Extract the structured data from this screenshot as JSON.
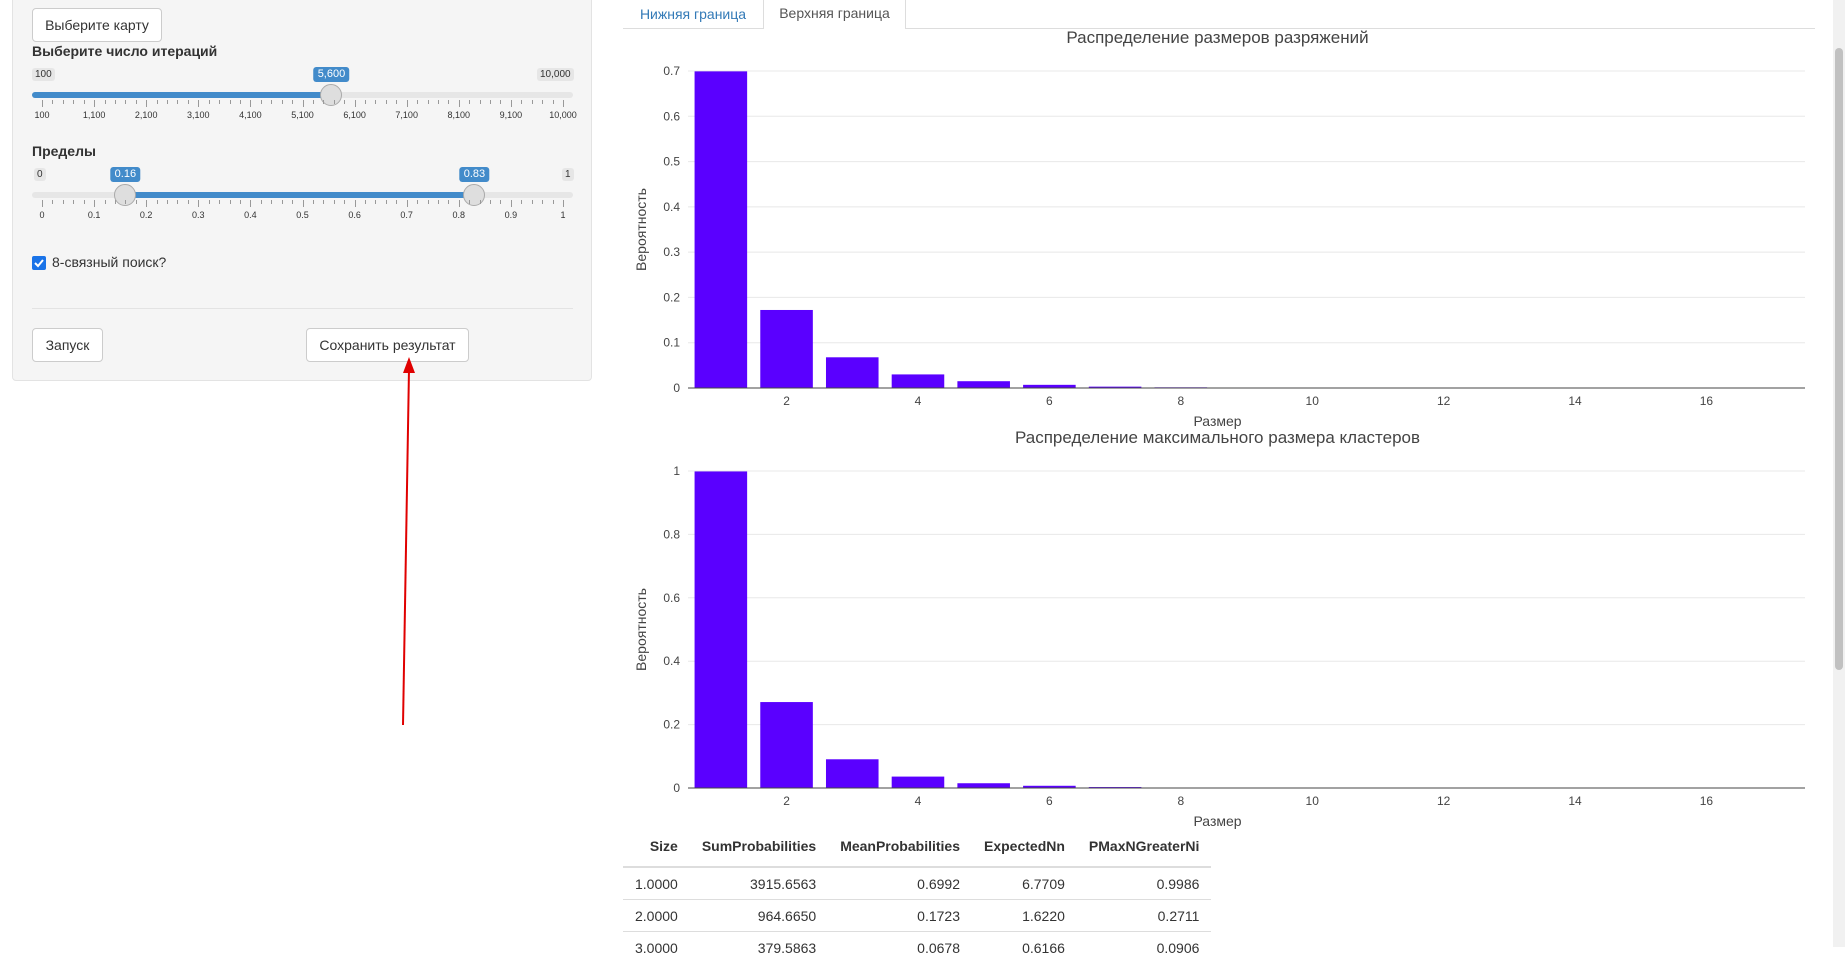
{
  "sidebar": {
    "choose_map_button": "Выберите карту",
    "iterations": {
      "label": "Выберите число итераций",
      "min": "100",
      "max": "10,000",
      "value": "5,600",
      "value_fraction": 0.5556,
      "ticks": [
        "100",
        "1,100",
        "2,100",
        "3,100",
        "4,100",
        "5,100",
        "6,100",
        "7,100",
        "8,100",
        "9,100",
        "10,000"
      ]
    },
    "bounds": {
      "label": "Пределы",
      "min": "0",
      "max": "1",
      "low": "0.16",
      "high": "0.83",
      "ticks": [
        "0",
        "0.1",
        "0.2",
        "0.3",
        "0.4",
        "0.5",
        "0.6",
        "0.7",
        "0.8",
        "0.9",
        "1"
      ]
    },
    "eight_connected": {
      "label": "8-связный поиск?",
      "checked": true
    },
    "run_button": "Запуск",
    "save_button": "Сохранить результат"
  },
  "tabs": [
    {
      "label": "Нижняя граница",
      "active": false
    },
    {
      "label": "Верхняя граница",
      "active": true
    }
  ],
  "colors": {
    "bar": "#5a00ff",
    "accent": "#428bca",
    "link": "#337ab7",
    "arrow": "#e00000"
  },
  "chart_data": [
    {
      "type": "bar",
      "title": "Распределение размеров разряжений",
      "xlabel": "Размер",
      "ylabel": "Вероятность",
      "x": [
        1,
        2,
        3,
        4,
        5,
        6,
        7,
        8,
        9,
        10
      ],
      "values": [
        0.6992,
        0.1723,
        0.0678,
        0.03,
        0.015,
        0.007,
        0.003,
        0.0015,
        0.0007,
        0.0003
      ],
      "xlim": [
        0.5,
        17.5
      ],
      "ylim": [
        0,
        0.7
      ],
      "xticks": [
        "2",
        "4",
        "6",
        "8",
        "10",
        "12",
        "14",
        "16"
      ],
      "yticks": [
        "0",
        "0.1",
        "0.2",
        "0.3",
        "0.4",
        "0.5",
        "0.6",
        "0.7"
      ],
      "grid": true
    },
    {
      "type": "bar",
      "title": "Распределение максимального размера кластеров",
      "xlabel": "Размер",
      "ylabel": "Вероятность",
      "x": [
        1,
        2,
        3,
        4,
        5,
        6,
        7,
        8,
        9,
        10
      ],
      "values": [
        0.9986,
        0.2711,
        0.0906,
        0.036,
        0.015,
        0.007,
        0.003,
        0.0015,
        0.0007,
        0.0003
      ],
      "xlim": [
        0.5,
        17.5
      ],
      "ylim": [
        0,
        1
      ],
      "xticks": [
        "2",
        "4",
        "6",
        "8",
        "10",
        "12",
        "14",
        "16"
      ],
      "yticks": [
        "0",
        "0.2",
        "0.4",
        "0.6",
        "0.8",
        "1"
      ],
      "grid": true
    }
  ],
  "table": {
    "columns": [
      "Size",
      "SumProbabilities",
      "MeanProbabilities",
      "ExpectedNn",
      "PMaxNGreaterNi"
    ],
    "rows": [
      [
        "1.0000",
        "3915.6563",
        "0.6992",
        "6.7709",
        "0.9986"
      ],
      [
        "2.0000",
        "964.6650",
        "0.1723",
        "1.6220",
        "0.2711"
      ],
      [
        "3.0000",
        "379.5863",
        "0.0678",
        "0.6166",
        "0.0906"
      ]
    ]
  }
}
